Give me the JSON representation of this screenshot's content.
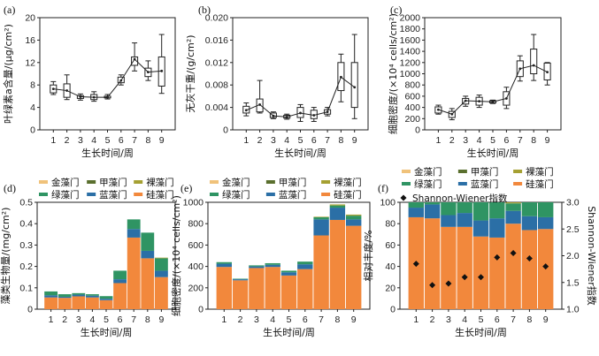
{
  "chart_data": [
    {
      "id": "a",
      "panel_label": "(a)",
      "type": "box",
      "xlabel": "生长时间/周",
      "ylabel": "叶绿素a含量/(μg/cm²)",
      "categories": [
        "1",
        "2",
        "3",
        "4",
        "5",
        "6",
        "7",
        "8",
        "9"
      ],
      "ylim": [
        0,
        20
      ],
      "yticks": [
        "0",
        "4",
        "8",
        "12",
        "16",
        "20"
      ],
      "boxes": [
        {
          "min": 6.3,
          "q1": 6.6,
          "q3": 8.0,
          "max": 8.6
        },
        {
          "min": 5.4,
          "q1": 5.8,
          "q3": 8.2,
          "max": 9.8
        },
        {
          "min": 5.3,
          "q1": 5.6,
          "q3": 6.1,
          "max": 6.4
        },
        {
          "min": 5.1,
          "q1": 5.4,
          "q3": 6.3,
          "max": 6.8
        },
        {
          "min": 5.5,
          "q1": 5.7,
          "q3": 6.0,
          "max": 6.3
        },
        {
          "min": 8.0,
          "q1": 8.4,
          "q3": 9.4,
          "max": 9.8
        },
        {
          "min": 10.5,
          "q1": 11.5,
          "q3": 13.0,
          "max": 15.5
        },
        {
          "min": 8.8,
          "q1": 9.5,
          "q3": 11.0,
          "max": 12.3
        },
        {
          "min": 6.5,
          "q1": 7.8,
          "q3": 13.0,
          "max": 17.0
        }
      ],
      "mean": [
        7.3,
        7.0,
        5.9,
        5.8,
        5.8,
        8.8,
        12.6,
        10.3,
        10.5
      ]
    },
    {
      "id": "b",
      "panel_label": "(b)",
      "type": "box",
      "xlabel": "生长时间/周",
      "ylabel": "无灰干重/(g/cm²)",
      "categories": [
        "1",
        "2",
        "3",
        "4",
        "5",
        "6",
        "7",
        "8",
        "9"
      ],
      "ylim": [
        0,
        0.02
      ],
      "yticks": [
        "0",
        "0.004",
        "0.008",
        "0.012",
        "0.016",
        "0.020"
      ],
      "boxes": [
        {
          "min": 0.0025,
          "q1": 0.003,
          "q3": 0.0042,
          "max": 0.0048
        },
        {
          "min": 0.003,
          "q1": 0.0032,
          "q3": 0.0055,
          "max": 0.0088
        },
        {
          "min": 0.002,
          "q1": 0.0022,
          "q3": 0.003,
          "max": 0.0032
        },
        {
          "min": 0.0019,
          "q1": 0.0021,
          "q3": 0.0026,
          "max": 0.0028
        },
        {
          "min": 0.0015,
          "q1": 0.0022,
          "q3": 0.004,
          "max": 0.0045
        },
        {
          "min": 0.0015,
          "q1": 0.002,
          "q3": 0.0035,
          "max": 0.004
        },
        {
          "min": 0.0025,
          "q1": 0.0028,
          "q3": 0.0036,
          "max": 0.004
        },
        {
          "min": 0.005,
          "q1": 0.007,
          "q3": 0.012,
          "max": 0.0135
        },
        {
          "min": 0.002,
          "q1": 0.004,
          "q3": 0.012,
          "max": 0.017
        }
      ],
      "mean": [
        0.0035,
        0.0045,
        0.0025,
        0.0023,
        0.003,
        0.0026,
        0.0032,
        0.0094,
        0.0076
      ]
    },
    {
      "id": "c",
      "panel_label": "(c)",
      "type": "box",
      "xlabel": "生长时间/周",
      "ylabel": "细胞密度/(×10⁴ cells/cm²)",
      "categories": [
        "1",
        "2",
        "3",
        "4",
        "5",
        "6",
        "7",
        "8",
        "9"
      ],
      "ylim": [
        0,
        2000
      ],
      "yticks": [
        "0",
        "200",
        "400",
        "600",
        "800",
        "1000",
        "1200",
        "1400",
        "1600",
        "1800",
        "2000"
      ],
      "boxes": [
        {
          "min": 280,
          "q1": 300,
          "q3": 410,
          "max": 440
        },
        {
          "min": 180,
          "q1": 220,
          "q3": 330,
          "max": 380
        },
        {
          "min": 420,
          "q1": 460,
          "q3": 560,
          "max": 600
        },
        {
          "min": 400,
          "q1": 440,
          "q3": 580,
          "max": 620
        },
        {
          "min": 470,
          "q1": 480,
          "q3": 520,
          "max": 530
        },
        {
          "min": 380,
          "q1": 440,
          "q3": 680,
          "max": 760
        },
        {
          "min": 870,
          "q1": 950,
          "q3": 1230,
          "max": 1320
        },
        {
          "min": 880,
          "q1": 1000,
          "q3": 1440,
          "max": 1700
        },
        {
          "min": 800,
          "q1": 890,
          "q3": 1190,
          "max": 1200
        }
      ],
      "mean": [
        360,
        280,
        520,
        510,
        500,
        560,
        1090,
        1150,
        1030
      ]
    },
    {
      "id": "d",
      "panel_label": "(d)",
      "type": "bar",
      "stacked": true,
      "xlabel": "生长时间/周",
      "ylabel": "藻类生物量/(mg/cm²)",
      "categories": [
        "1",
        "2",
        "3",
        "4",
        "5",
        "6",
        "7",
        "8",
        "9"
      ],
      "ylim": [
        0,
        0.5
      ],
      "yticks": [
        "0",
        "0.1",
        "0.2",
        "0.3",
        "0.4",
        "0.5"
      ],
      "series": [
        {
          "name": "硅藻门",
          "color": "#f2883c",
          "values": [
            0.055,
            0.053,
            0.06,
            0.055,
            0.042,
            0.122,
            0.335,
            0.238,
            0.15
          ]
        },
        {
          "name": "蓝藻门",
          "color": "#2b6fa6",
          "values": [
            0.01,
            0.005,
            0.008,
            0.008,
            0.007,
            0.018,
            0.04,
            0.035,
            0.03
          ]
        },
        {
          "name": "绿藻门",
          "color": "#2f9463",
          "values": [
            0.018,
            0.012,
            0.007,
            0.007,
            0.012,
            0.04,
            0.045,
            0.085,
            0.058
          ]
        },
        {
          "name": "裸藻门",
          "color": "#a5a032",
          "values": [
            0.0,
            0.0,
            0.0,
            0.0,
            0.0,
            0.0,
            0.0,
            0.0,
            0.003
          ]
        },
        {
          "name": "甲藻门",
          "color": "#5a6f2e",
          "values": [
            0.0,
            0.0,
            0.0,
            0.0,
            0.0,
            0.0,
            0.0,
            0.0,
            0.0
          ]
        },
        {
          "name": "金藻门",
          "color": "#f0c27a",
          "values": [
            0.0,
            0.0,
            0.0,
            0.0,
            0.0,
            0.0,
            0.0,
            0.0,
            0.0
          ]
        }
      ],
      "legend": [
        "金藻门",
        "甲藻门",
        "裸藻门",
        "绿藻门",
        "蓝藻门",
        "硅藻门"
      ]
    },
    {
      "id": "e",
      "panel_label": "(e)",
      "type": "bar",
      "stacked": true,
      "xlabel": "生长时间/周",
      "ylabel": "细胞密度/(×10⁴ cells/cm²)",
      "categories": [
        "1",
        "2",
        "3",
        "4",
        "5",
        "6",
        "7",
        "8",
        "9"
      ],
      "ylim": [
        0,
        1000
      ],
      "yticks": [
        "0",
        "200",
        "400",
        "600",
        "800",
        "1000"
      ],
      "series": [
        {
          "name": "硅藻门",
          "color": "#f2883c",
          "values": [
            395,
            270,
            385,
            395,
            315,
            375,
            690,
            835,
            780
          ]
        },
        {
          "name": "蓝藻门",
          "color": "#2b6fa6",
          "values": [
            30,
            10,
            15,
            20,
            30,
            45,
            150,
            115,
            60
          ]
        },
        {
          "name": "绿藻门",
          "color": "#2f9463",
          "values": [
            15,
            5,
            10,
            15,
            15,
            25,
            20,
            20,
            35
          ]
        },
        {
          "name": "裸藻门",
          "color": "#a5a032",
          "values": [
            0,
            0,
            0,
            0,
            0,
            0,
            5,
            10,
            10
          ]
        },
        {
          "name": "甲藻门",
          "color": "#5a6f2e",
          "values": [
            0,
            0,
            0,
            0,
            0,
            0,
            0,
            0,
            0
          ]
        },
        {
          "name": "金藻门",
          "color": "#f0c27a",
          "values": [
            0,
            0,
            0,
            0,
            0,
            0,
            0,
            0,
            0
          ]
        }
      ],
      "legend": [
        "金藻门",
        "甲藻门",
        "裸藻门",
        "绿藻门",
        "蓝藻门",
        "硅藻门"
      ]
    },
    {
      "id": "f",
      "panel_label": "(f)",
      "type": "bar",
      "stacked": true,
      "xlabel": "生长时间/周",
      "ylabel": "相对丰度/%",
      "y2label": "Shannon-Wiener指数",
      "categories": [
        "1",
        "2",
        "3",
        "4",
        "5",
        "6",
        "7",
        "8",
        "9"
      ],
      "ylim": [
        0,
        100
      ],
      "yticks": [
        "0",
        "20",
        "40",
        "60",
        "80",
        "100"
      ],
      "y2lim": [
        1.0,
        3.0
      ],
      "y2ticks": [
        "1.0",
        "1.5",
        "2.0",
        "2.5",
        "3.0"
      ],
      "series": [
        {
          "name": "硅藻门",
          "color": "#f2883c",
          "values": [
            86,
            85,
            77,
            77,
            68,
            67,
            80,
            74,
            75
          ]
        },
        {
          "name": "蓝藻门",
          "color": "#2b6fa6",
          "values": [
            9,
            13,
            11,
            13,
            15,
            18,
            12,
            13,
            11
          ]
        },
        {
          "name": "绿藻门",
          "color": "#2f9463",
          "values": [
            5,
            2,
            12,
            10,
            17,
            15,
            7,
            13,
            14
          ]
        },
        {
          "name": "裸藻门",
          "color": "#a5a032",
          "values": [
            0,
            0,
            0,
            0,
            0,
            0,
            1,
            0,
            0
          ]
        },
        {
          "name": "甲藻门",
          "color": "#5a6f2e",
          "values": [
            0,
            0,
            0,
            0,
            0,
            0,
            0,
            0,
            0
          ]
        },
        {
          "name": "金藻门",
          "color": "#f0c27a",
          "values": [
            0,
            0,
            0,
            0,
            0,
            0,
            0,
            0,
            0
          ]
        }
      ],
      "shannon": {
        "name": "Shannon-Wiener指数",
        "values": [
          1.85,
          1.45,
          1.48,
          1.6,
          1.6,
          1.97,
          2.05,
          1.95,
          1.8
        ]
      },
      "legend": [
        "金藻门",
        "甲藻门",
        "裸藻门",
        "绿藻门",
        "蓝藻门",
        "硅藻门"
      ]
    }
  ]
}
